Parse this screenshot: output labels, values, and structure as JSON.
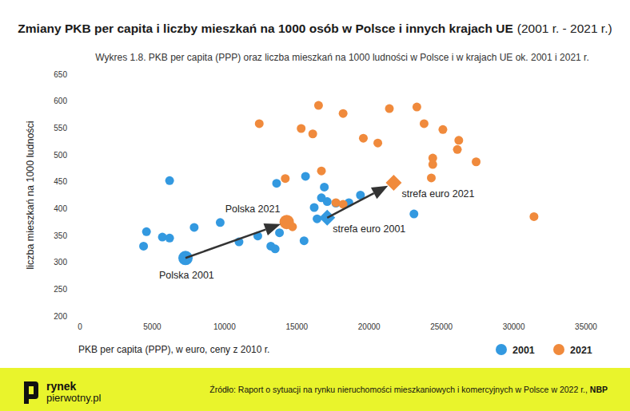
{
  "chart_data": {
    "type": "scatter",
    "title": "Zmiany PKB per capita i liczby mieszkań na 1000 osób w Polsce i innych krajach UE",
    "title_period": "(2001 r. - 2021 r.)",
    "subtitle": "Wykres 1.8. PKB per capita (PPP) oraz liczba mieszkań na 1000 ludności w Polsce i w krajach UE ok. 2001 i 2021 r.",
    "x_label": "PKB per capita (PPP), w euro, ceny z 2010 r.",
    "y_label": "liczba mieszkań na 1000 ludności",
    "xlim": [
      0,
      35000
    ],
    "xticks": [
      0,
      5000,
      10000,
      15000,
      20000,
      25000,
      30000,
      35000
    ],
    "ylim": [
      200,
      650
    ],
    "yticks": [
      200,
      250,
      300,
      350,
      400,
      450,
      500,
      550,
      600,
      650
    ],
    "grid": false,
    "legend": "bottom-right",
    "series": [
      {
        "name": "2001",
        "color": "#3399e0",
        "marker": "circle",
        "x": [
          4400,
          4600,
          5700,
          6200,
          6200,
          7900,
          9700,
          11000,
          12300,
          13200,
          13500,
          13800,
          13600,
          15600,
          15500,
          16200,
          16400,
          16700,
          16900,
          17100,
          17700,
          18600,
          19400,
          23100
        ],
        "values": [
          330,
          357,
          347,
          345,
          452,
          365,
          374,
          338,
          349,
          330,
          325,
          355,
          447,
          460,
          340,
          402,
          381,
          420,
          440,
          413,
          410,
          411,
          425,
          390
        ]
      },
      {
        "name": "2021",
        "color": "#f08a3c",
        "marker": "circle",
        "x": [
          12400,
          14200,
          14700,
          15300,
          16100,
          16500,
          16700,
          17700,
          18200,
          18200,
          19600,
          20600,
          21400,
          23300,
          23800,
          24300,
          24400,
          24400,
          25100,
          26100,
          26200,
          27400,
          31400
        ],
        "values": [
          558,
          456,
          366,
          549,
          539,
          592,
          470,
          411,
          577,
          408,
          531,
          522,
          586,
          589,
          558,
          457,
          482,
          494,
          547,
          510,
          527,
          487,
          385
        ]
      }
    ],
    "arrows": [
      {
        "marker": "circle",
        "from": {
          "label": "Polska 2001",
          "x": 7300,
          "y": 308
        },
        "to": {
          "label": "Polska 2021",
          "x": 14300,
          "y": 375
        }
      },
      {
        "marker": "diamond",
        "from": {
          "label": "strefa euro 2001",
          "x": 17100,
          "y": 383
        },
        "to": {
          "label": "strefa euro 2021",
          "x": 21700,
          "y": 448
        }
      }
    ],
    "logo": [
      "rynek",
      "pierwotny.pl"
    ],
    "source": "Źródło: Raport o sytuacji na rynku nieruchomości mieszkaniowych i komercyjnych w Polsce w 2022 r., ",
    "source_org": "NBP"
  }
}
